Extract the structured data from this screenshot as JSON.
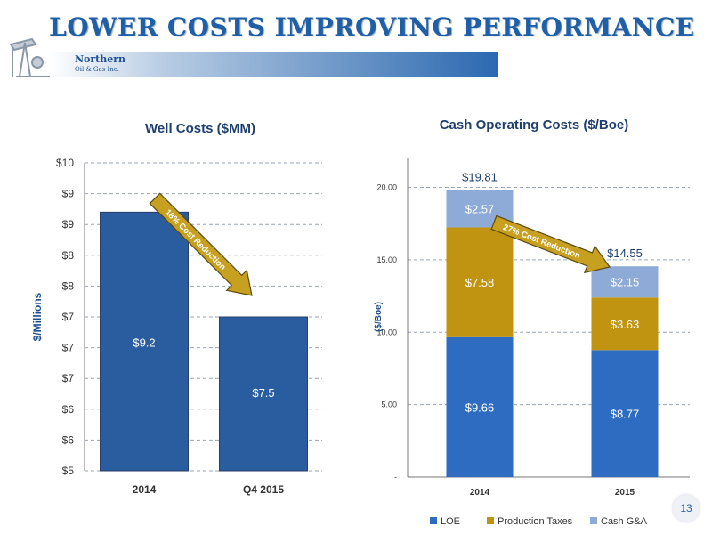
{
  "slide": {
    "title": "LOWER COSTS IMPROVING PERFORMANCE",
    "logo_name": "Northern",
    "logo_sub": "Oil & Gas Inc.",
    "page_number": "13"
  },
  "colors": {
    "title": "#1f5fa8",
    "bar_blue": "#2a5da0",
    "loe": "#2e6cc2",
    "production_taxes": "#c09410",
    "cash_ga": "#8eaad6",
    "arrow": "#c8a020"
  },
  "chart_data": [
    {
      "type": "bar",
      "title": "Well Costs ($MM)",
      "ylabel": "$/Millions",
      "categories": [
        "2014",
        "Q4 2015"
      ],
      "values": [
        9.2,
        7.5
      ],
      "data_labels": [
        "$9.2",
        "$7.5"
      ],
      "yticks": [
        5,
        5.5,
        6,
        6.5,
        7,
        7.5,
        8,
        8.5,
        9,
        9.5,
        10
      ],
      "ytick_labels": [
        "$5",
        "$6",
        "$6",
        "$7",
        "$7",
        "$7",
        "$8",
        "$8",
        "$9",
        "$9",
        "$10"
      ],
      "ylim": [
        5,
        10
      ],
      "grid": true,
      "annotation": "18% Cost Reduction"
    },
    {
      "type": "bar",
      "stacked": true,
      "title": "Cash Operating Costs ($/Boe)",
      "ylabel": "($/Boe)",
      "categories": [
        "2014",
        "2015"
      ],
      "series": [
        {
          "name": "LOE",
          "values": [
            9.66,
            8.77
          ],
          "labels": [
            "$9.66",
            "$8.77"
          ]
        },
        {
          "name": "Production Taxes",
          "values": [
            7.58,
            3.63
          ],
          "labels": [
            "$7.58",
            "$3.63"
          ]
        },
        {
          "name": "Cash G&A",
          "values": [
            2.57,
            2.15
          ],
          "labels": [
            "$2.57",
            "$2.15"
          ]
        }
      ],
      "totals": [
        "$19.81",
        "$14.55"
      ],
      "yticks": [
        0,
        5,
        10,
        15,
        20
      ],
      "ytick_labels": [
        "-",
        "5.00",
        "10.00",
        "15.00",
        "20.00"
      ],
      "ylim": [
        0,
        22
      ],
      "grid": true,
      "legend_position": "bottom",
      "annotation": "27% Cost Reduction"
    }
  ]
}
